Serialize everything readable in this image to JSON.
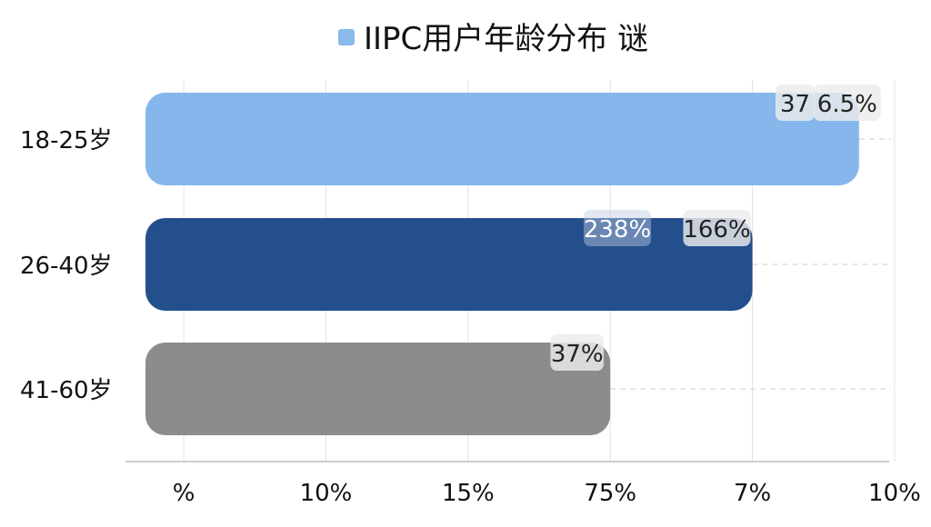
{
  "chart_data": {
    "type": "bar",
    "orientation": "horizontal",
    "legend": {
      "position": "top-center",
      "entries": [
        {
          "label": "IIPC用户年龄分布 谜",
          "color": "#8ab9ea"
        }
      ]
    },
    "categories": [
      "18-25岁",
      "26-40岁",
      "41-60岁"
    ],
    "bar_colors": [
      "#86b7ec",
      "#234f8c",
      "#8c8c8c"
    ],
    "values": [
      3.05,
      2.6,
      2.0
    ],
    "x_range": [
      0,
      3.3
    ],
    "x_ticks": [
      {
        "value": 0.2,
        "label": "%"
      },
      {
        "value": 0.8,
        "label": "10%"
      },
      {
        "value": 1.4,
        "label": "15%"
      },
      {
        "value": 2.0,
        "label": "75%"
      },
      {
        "value": 2.6,
        "label": "7%"
      },
      {
        "value": 3.2,
        "label": "10%"
      }
    ],
    "grid": {
      "vertical": true,
      "horizontal_dashed": true
    },
    "data_labels": [
      [
        {
          "text": "37",
          "at": 2.78,
          "style": "light"
        },
        {
          "text": "6.5%",
          "at": 3.0,
          "style": "light"
        }
      ],
      [
        {
          "text": "238%",
          "at": 2.03,
          "style": "dark"
        },
        {
          "text": "166%",
          "at": 2.45,
          "style": "light"
        }
      ],
      [
        {
          "text": "37%",
          "at": 1.86,
          "style": "light"
        }
      ]
    ]
  }
}
